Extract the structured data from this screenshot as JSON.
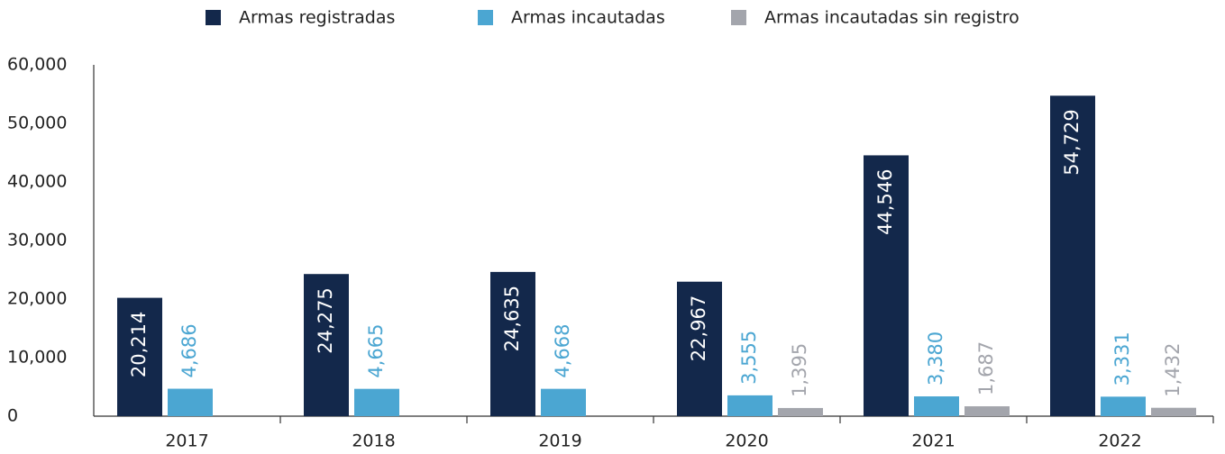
{
  "chart_data": {
    "type": "bar",
    "categories": [
      "2017",
      "2018",
      "2019",
      "2020",
      "2021",
      "2022"
    ],
    "series": [
      {
        "name": "Armas registradas",
        "color": "#13284b",
        "values": [
          20214,
          24275,
          24635,
          22967,
          44546,
          54729
        ],
        "value_labels": [
          "20,214",
          "24,275",
          "24,635",
          "22,967",
          "44,546",
          "54,729"
        ]
      },
      {
        "name": "Armas incautadas",
        "color": "#4ba6d2",
        "values": [
          4686,
          4665,
          4668,
          3555,
          3380,
          3331
        ],
        "value_labels": [
          "4,686",
          "4,665",
          "4,668",
          "3,555",
          "3,380",
          "3,331"
        ]
      },
      {
        "name": "Armas incautadas sin registro",
        "color": "#a3a5ac",
        "values": [
          null,
          null,
          null,
          1395,
          1687,
          1432
        ],
        "value_labels": [
          null,
          null,
          null,
          "1,395",
          "1,687",
          "1,432"
        ]
      }
    ],
    "ylim": [
      0,
      60000
    ],
    "yticks": [
      0,
      {
        "value": 10000,
        "label": "10,000"
      },
      {
        "value": 20000,
        "label": "20,000"
      },
      {
        "value": 30000,
        "label": "30,000"
      },
      {
        "value": 40000,
        "label": "40,000"
      },
      {
        "value": 50000,
        "label": "50,000"
      },
      {
        "value": 60000,
        "label": "60,000"
      }
    ],
    "legend": "top"
  }
}
